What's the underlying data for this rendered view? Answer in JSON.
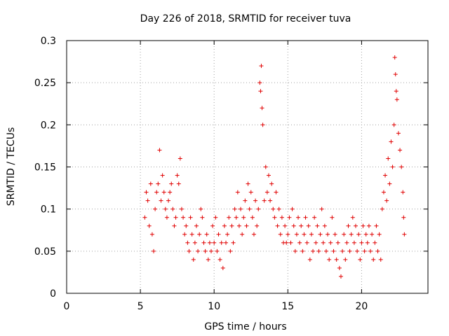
{
  "chart_data": {
    "type": "scatter",
    "title": "Day 226 of 2018, SRMTID for receiver tuva",
    "xlabel": "GPS time / hours",
    "ylabel": "SRMTID / TECUs",
    "xlim": [
      0,
      24.5
    ],
    "ylim": [
      0,
      0.3
    ],
    "xticks": [
      0,
      5,
      10,
      15,
      20
    ],
    "xtick_labels": [
      "0",
      "5",
      "10",
      "15",
      "20"
    ],
    "yticks": [
      0,
      0.05,
      0.1,
      0.15,
      0.2,
      0.25,
      0.3
    ],
    "ytick_labels": [
      "0",
      "0.05",
      "0.1",
      "0.15",
      "0.2",
      "0.25",
      "0.3"
    ],
    "grid": true,
    "marker": "+",
    "color": "#e00000",
    "series": [
      {
        "name": "SRMTID",
        "points": [
          [
            5.3,
            0.09
          ],
          [
            5.4,
            0.12
          ],
          [
            5.5,
            0.11
          ],
          [
            5.6,
            0.08
          ],
          [
            5.7,
            0.13
          ],
          [
            5.8,
            0.07
          ],
          [
            5.9,
            0.05
          ],
          [
            6.0,
            0.1
          ],
          [
            6.1,
            0.12
          ],
          [
            6.2,
            0.13
          ],
          [
            6.3,
            0.17
          ],
          [
            6.4,
            0.11
          ],
          [
            6.5,
            0.14
          ],
          [
            6.6,
            0.12
          ],
          [
            6.7,
            0.1
          ],
          [
            6.8,
            0.09
          ],
          [
            6.9,
            0.11
          ],
          [
            7.0,
            0.12
          ],
          [
            7.1,
            0.13
          ],
          [
            7.2,
            0.1
          ],
          [
            7.3,
            0.08
          ],
          [
            7.4,
            0.09
          ],
          [
            7.5,
            0.14
          ],
          [
            7.6,
            0.13
          ],
          [
            7.7,
            0.16
          ],
          [
            7.8,
            0.1
          ],
          [
            7.9,
            0.09
          ],
          [
            8.0,
            0.07
          ],
          [
            8.1,
            0.08
          ],
          [
            8.2,
            0.06
          ],
          [
            8.3,
            0.05
          ],
          [
            8.4,
            0.09
          ],
          [
            8.5,
            0.07
          ],
          [
            8.6,
            0.04
          ],
          [
            8.7,
            0.06
          ],
          [
            8.8,
            0.08
          ],
          [
            8.9,
            0.05
          ],
          [
            9.0,
            0.07
          ],
          [
            9.1,
            0.1
          ],
          [
            9.2,
            0.09
          ],
          [
            9.3,
            0.06
          ],
          [
            9.4,
            0.05
          ],
          [
            9.5,
            0.07
          ],
          [
            9.6,
            0.04
          ],
          [
            9.7,
            0.06
          ],
          [
            9.8,
            0.05
          ],
          [
            9.9,
            0.08
          ],
          [
            10.0,
            0.06
          ],
          [
            10.1,
            0.09
          ],
          [
            10.2,
            0.05
          ],
          [
            10.3,
            0.07
          ],
          [
            10.4,
            0.04
          ],
          [
            10.5,
            0.06
          ],
          [
            10.6,
            0.03
          ],
          [
            10.7,
            0.08
          ],
          [
            10.8,
            0.06
          ],
          [
            10.9,
            0.07
          ],
          [
            11.0,
            0.09
          ],
          [
            11.1,
            0.05
          ],
          [
            11.2,
            0.08
          ],
          [
            11.3,
            0.06
          ],
          [
            11.4,
            0.1
          ],
          [
            11.5,
            0.09
          ],
          [
            11.6,
            0.12
          ],
          [
            11.7,
            0.08
          ],
          [
            11.8,
            0.1
          ],
          [
            11.9,
            0.07
          ],
          [
            12.0,
            0.09
          ],
          [
            12.1,
            0.11
          ],
          [
            12.2,
            0.08
          ],
          [
            12.3,
            0.13
          ],
          [
            12.4,
            0.1
          ],
          [
            12.5,
            0.12
          ],
          [
            12.6,
            0.09
          ],
          [
            12.7,
            0.07
          ],
          [
            12.8,
            0.11
          ],
          [
            12.9,
            0.08
          ],
          [
            13.0,
            0.1
          ],
          [
            13.1,
            0.25
          ],
          [
            13.15,
            0.24
          ],
          [
            13.2,
            0.27
          ],
          [
            13.25,
            0.22
          ],
          [
            13.3,
            0.2
          ],
          [
            13.4,
            0.11
          ],
          [
            13.5,
            0.15
          ],
          [
            13.6,
            0.12
          ],
          [
            13.7,
            0.14
          ],
          [
            13.8,
            0.11
          ],
          [
            13.9,
            0.13
          ],
          [
            14.0,
            0.1
          ],
          [
            14.1,
            0.09
          ],
          [
            14.2,
            0.12
          ],
          [
            14.3,
            0.08
          ],
          [
            14.4,
            0.1
          ],
          [
            14.5,
            0.07
          ],
          [
            14.6,
            0.09
          ],
          [
            14.7,
            0.06
          ],
          [
            14.8,
            0.08
          ],
          [
            14.9,
            0.06
          ],
          [
            15.0,
            0.07
          ],
          [
            15.1,
            0.09
          ],
          [
            15.2,
            0.06
          ],
          [
            15.3,
            0.1
          ],
          [
            15.4,
            0.08
          ],
          [
            15.5,
            0.05
          ],
          [
            15.6,
            0.07
          ],
          [
            15.7,
            0.09
          ],
          [
            15.8,
            0.06
          ],
          [
            15.9,
            0.08
          ],
          [
            16.0,
            0.05
          ],
          [
            16.1,
            0.07
          ],
          [
            16.2,
            0.09
          ],
          [
            16.3,
            0.06
          ],
          [
            16.4,
            0.08
          ],
          [
            16.5,
            0.04
          ],
          [
            16.6,
            0.07
          ],
          [
            16.7,
            0.05
          ],
          [
            16.8,
            0.09
          ],
          [
            16.9,
            0.06
          ],
          [
            17.0,
            0.08
          ],
          [
            17.1,
            0.05
          ],
          [
            17.2,
            0.07
          ],
          [
            17.3,
            0.1
          ],
          [
            17.4,
            0.06
          ],
          [
            17.5,
            0.08
          ],
          [
            17.6,
            0.05
          ],
          [
            17.7,
            0.07
          ],
          [
            17.8,
            0.04
          ],
          [
            17.9,
            0.06
          ],
          [
            18.0,
            0.09
          ],
          [
            18.1,
            0.05
          ],
          [
            18.2,
            0.07
          ],
          [
            18.3,
            0.04
          ],
          [
            18.4,
            0.06
          ],
          [
            18.5,
            0.03
          ],
          [
            18.6,
            0.02
          ],
          [
            18.7,
            0.05
          ],
          [
            18.8,
            0.07
          ],
          [
            18.9,
            0.04
          ],
          [
            19.0,
            0.06
          ],
          [
            19.1,
            0.08
          ],
          [
            19.2,
            0.05
          ],
          [
            19.3,
            0.07
          ],
          [
            19.4,
            0.09
          ],
          [
            19.5,
            0.06
          ],
          [
            19.6,
            0.08
          ],
          [
            19.7,
            0.05
          ],
          [
            19.8,
            0.07
          ],
          [
            19.9,
            0.04
          ],
          [
            20.0,
            0.06
          ],
          [
            20.1,
            0.08
          ],
          [
            20.2,
            0.05
          ],
          [
            20.3,
            0.07
          ],
          [
            20.4,
            0.06
          ],
          [
            20.5,
            0.08
          ],
          [
            20.6,
            0.05
          ],
          [
            20.7,
            0.07
          ],
          [
            20.8,
            0.04
          ],
          [
            20.9,
            0.06
          ],
          [
            21.0,
            0.08
          ],
          [
            21.1,
            0.05
          ],
          [
            21.2,
            0.07
          ],
          [
            21.3,
            0.04
          ],
          [
            21.4,
            0.1
          ],
          [
            21.5,
            0.12
          ],
          [
            21.6,
            0.14
          ],
          [
            21.7,
            0.11
          ],
          [
            21.8,
            0.16
          ],
          [
            21.9,
            0.13
          ],
          [
            22.0,
            0.18
          ],
          [
            22.1,
            0.15
          ],
          [
            22.2,
            0.2
          ],
          [
            22.25,
            0.28
          ],
          [
            22.3,
            0.26
          ],
          [
            22.35,
            0.24
          ],
          [
            22.4,
            0.23
          ],
          [
            22.5,
            0.19
          ],
          [
            22.6,
            0.17
          ],
          [
            22.7,
            0.15
          ],
          [
            22.8,
            0.12
          ],
          [
            22.85,
            0.09
          ],
          [
            22.9,
            0.07
          ]
        ]
      }
    ]
  }
}
